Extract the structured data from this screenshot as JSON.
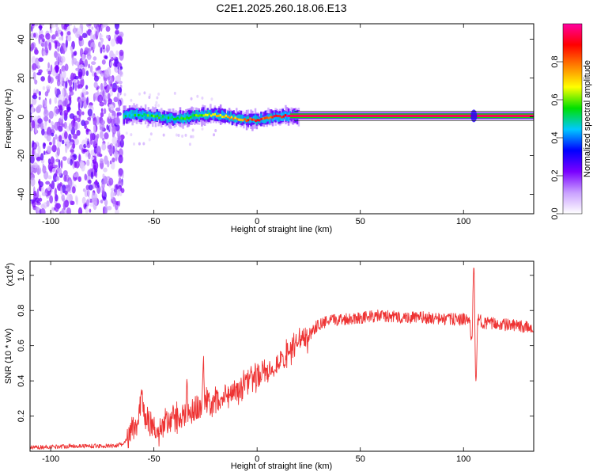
{
  "title": "C2E1.2025.260.18.06.E13",
  "chart_data": [
    {
      "type": "heatmap",
      "title": "C2E1.2025.260.18.06.E13",
      "xlabel": "Height of straight line (km)",
      "ylabel": "Frequency (Hz)",
      "xlim": [
        -110,
        134
      ],
      "ylim": [
        -50,
        48
      ],
      "xticks": [
        "-100",
        "-50",
        "0",
        "50",
        "100"
      ],
      "yticks": [
        "-40",
        "-20",
        "0",
        "20",
        "40"
      ],
      "colorbar": {
        "label": "Normalized spectral amplitude",
        "range": [
          0.0,
          1.0
        ],
        "ticks": [
          "0.0",
          "0.2",
          "0.4",
          "0.6",
          "0.8"
        ],
        "colors": [
          "#ffffff",
          "#c9a0ff",
          "#7a00ff",
          "#0000ff",
          "#00c8ff",
          "#00e000",
          "#ffff00",
          "#ff8000",
          "#ff0000",
          "#ff00a0"
        ]
      },
      "noise_region_x": [
        -110,
        -65
      ],
      "ridge": {
        "x": [
          -65,
          -60,
          -55,
          -50,
          -45,
          -40,
          -35,
          -30,
          -25,
          -20,
          -15,
          -10,
          -5,
          0,
          5,
          10,
          15,
          20,
          134
        ],
        "freq": [
          0.5,
          1.5,
          0.8,
          0.2,
          -0.5,
          -1.0,
          -0.5,
          0.5,
          1.0,
          0.8,
          0.2,
          -1.0,
          -1.5,
          -1.5,
          -0.5,
          0.2,
          0.5,
          0.5,
          0.5
        ],
        "amplitude": [
          0.45,
          0.5,
          0.55,
          0.55,
          0.5,
          0.5,
          0.55,
          0.6,
          0.65,
          0.7,
          0.7,
          0.75,
          0.8,
          0.85,
          0.85,
          0.9,
          0.95,
          0.95,
          0.95
        ]
      }
    },
    {
      "type": "line",
      "xlabel": "Height of straight line (km)",
      "ylabel": "SNR (10 * v/v)",
      "yunit": "(x10",
      "yunit_exp": "4",
      "xlim": [
        -110,
        134
      ],
      "ylim": [
        0,
        1.08
      ],
      "xticks": [
        "-100",
        "-50",
        "0",
        "50",
        "100"
      ],
      "yticks": [
        "0.2",
        "0.4",
        "0.6",
        "0.8",
        "1.0"
      ],
      "color": "#ee3333",
      "series": [
        {
          "x": [
            -110,
            -90,
            -70,
            -65,
            -62,
            -60,
            -58,
            -56,
            -55,
            -52,
            -48,
            -45,
            -42,
            -40,
            -38,
            -35,
            -32,
            -30,
            -28,
            -25,
            -22,
            -20,
            -15,
            -10,
            -5,
            0,
            5,
            10,
            15,
            20,
            25,
            28,
            30,
            35,
            40,
            50,
            60,
            70,
            80,
            90,
            100,
            103,
            104,
            105,
            106,
            107,
            110,
            120,
            134
          ],
          "y": [
            0.02,
            0.03,
            0.03,
            0.04,
            0.08,
            0.12,
            0.18,
            0.3,
            0.22,
            0.15,
            0.12,
            0.16,
            0.18,
            0.2,
            0.17,
            0.22,
            0.2,
            0.26,
            0.24,
            0.28,
            0.25,
            0.28,
            0.32,
            0.35,
            0.38,
            0.42,
            0.45,
            0.5,
            0.56,
            0.6,
            0.66,
            0.7,
            0.72,
            0.74,
            0.75,
            0.76,
            0.77,
            0.76,
            0.76,
            0.75,
            0.75,
            0.74,
            0.62,
            0.95,
            0.45,
            0.75,
            0.73,
            0.72,
            0.7
          ]
        }
      ],
      "spikes": [
        {
          "x": -56,
          "y": 0.35
        },
        {
          "x": -34,
          "y": 0.42
        },
        {
          "x": -26,
          "y": 0.57
        },
        {
          "x": 12,
          "y": 0.55
        },
        {
          "x": 105,
          "y": 1.06
        },
        {
          "x": 106,
          "y": 0.4
        }
      ]
    }
  ]
}
